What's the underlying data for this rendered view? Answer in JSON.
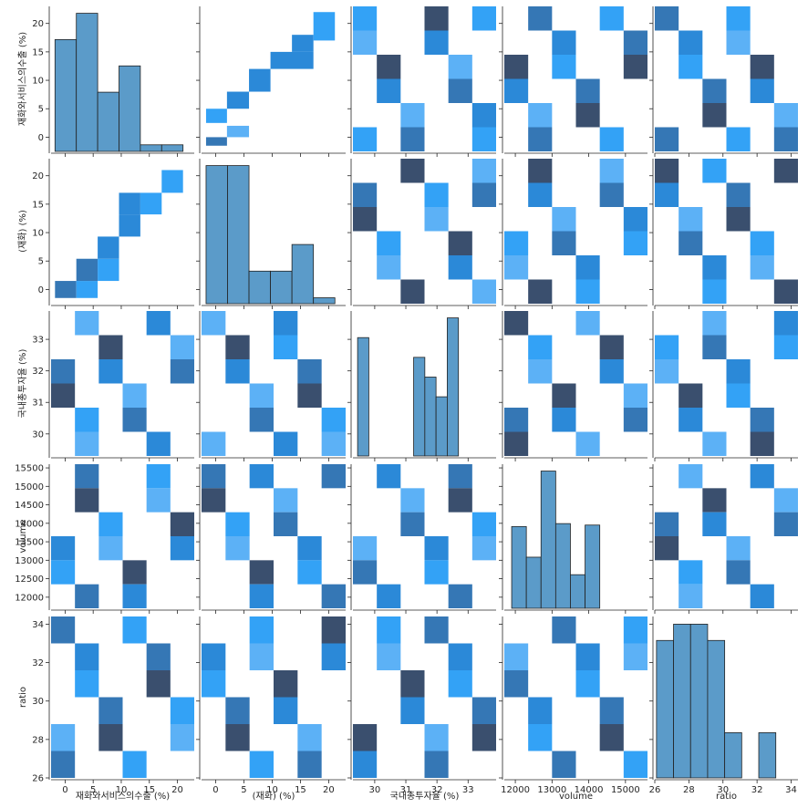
{
  "chart_data": {
    "type": "pairplot",
    "variables": [
      {
        "key": "v0",
        "label": "재화와서비스의수출 (%)",
        "range": [
          -2.5,
          23
        ],
        "ticks": [
          0,
          5,
          10,
          15,
          20
        ]
      },
      {
        "key": "v1",
        "label": "(재화) (%)",
        "range": [
          -2.5,
          23
        ],
        "ticks": [
          0,
          5,
          10,
          15,
          20
        ]
      },
      {
        "key": "v2",
        "label": "국내총투자율 (%)",
        "range": [
          29.3,
          33.9
        ],
        "ticks": [
          30,
          31,
          32,
          33
        ]
      },
      {
        "key": "v3",
        "label": "volume",
        "range": [
          11700,
          15600
        ],
        "ticks": [
          12000,
          12500,
          13000,
          13500,
          14000,
          14500,
          15000,
          15500
        ],
        "xticks": [
          12000,
          13000,
          14000,
          15000
        ]
      },
      {
        "key": "v4",
        "label": "ratio",
        "range": [
          26,
          34.4
        ],
        "ticks": [
          26,
          28,
          30,
          32,
          34
        ]
      }
    ],
    "histograms": [
      {
        "variable": "재화와서비스의수출 (%)",
        "edges": [
          -1.8,
          2.0,
          5.8,
          9.6,
          13.4,
          17.2,
          21.0
        ],
        "values": [
          8.5,
          10.5,
          4.5,
          6.5,
          0.5,
          0.5
        ]
      },
      {
        "variable": "(재화) (%)",
        "edges": [
          -1.7,
          2.1,
          5.9,
          9.7,
          13.5,
          17.3,
          21.1
        ],
        "values": [
          7.0,
          7.0,
          1.65,
          1.65,
          3.0,
          0.3
        ]
      },
      {
        "variable": "국내총투자율 (%)",
        "edges": [
          29.45,
          29.81,
          30.17,
          30.53,
          30.89,
          31.25,
          31.61,
          31.97,
          32.33,
          32.69,
          33.05,
          33.41,
          33.77
        ],
        "values": [
          6,
          0,
          0,
          0,
          0,
          5,
          4,
          3,
          7,
          0,
          0,
          0
        ]
      },
      {
        "variable": "volume",
        "edges": [
          11900,
          12300,
          12700,
          13100,
          13500,
          13900,
          14300,
          14700,
          15100
        ],
        "values": [
          5.6,
          3.5,
          9.4,
          5.8,
          2.3,
          5.7,
          0,
          0
        ]
      },
      {
        "variable": "ratio",
        "edges": [
          26.1,
          27.1,
          28.1,
          29.1,
          30.1,
          31.1,
          32.1,
          33.1,
          34.1
        ],
        "values": [
          7.6,
          8.5,
          8.5,
          7.6,
          2.5,
          0,
          2.5,
          0
        ]
      }
    ],
    "heatmap_cells": [
      {
        "row": 0,
        "col": 1,
        "cells": [
          [
            -1.7,
            -1.5,
            2,
            0,
            4
          ],
          [
            2,
            0,
            5.9,
            2,
            3
          ],
          [
            -1.7,
            2.5,
            2,
            5,
            2
          ],
          [
            2,
            5,
            5.9,
            8,
            1
          ],
          [
            5.9,
            8,
            9.7,
            12,
            1
          ],
          [
            9.7,
            12,
            17.3,
            15,
            1
          ],
          [
            13.5,
            15,
            17.3,
            18,
            1
          ],
          [
            17.3,
            17,
            21.1,
            22,
            2
          ]
        ]
      },
      {
        "row": 1,
        "col": 0,
        "cells": [
          [
            -1.8,
            -1.5,
            2,
            1.5,
            4
          ],
          [
            2,
            -1.5,
            5.8,
            1.5,
            2
          ],
          [
            2,
            1.5,
            5.8,
            5.4,
            4
          ],
          [
            5.8,
            1.5,
            9.6,
            5.4,
            2
          ],
          [
            5.8,
            5.4,
            9.6,
            9.3,
            1
          ],
          [
            9.6,
            9.3,
            13.4,
            13.2,
            1
          ],
          [
            9.6,
            13.2,
            13.4,
            17,
            1
          ],
          [
            13.4,
            13.2,
            17.2,
            17,
            2
          ],
          [
            17.2,
            17,
            21,
            21,
            2
          ]
        ]
      }
    ]
  }
}
